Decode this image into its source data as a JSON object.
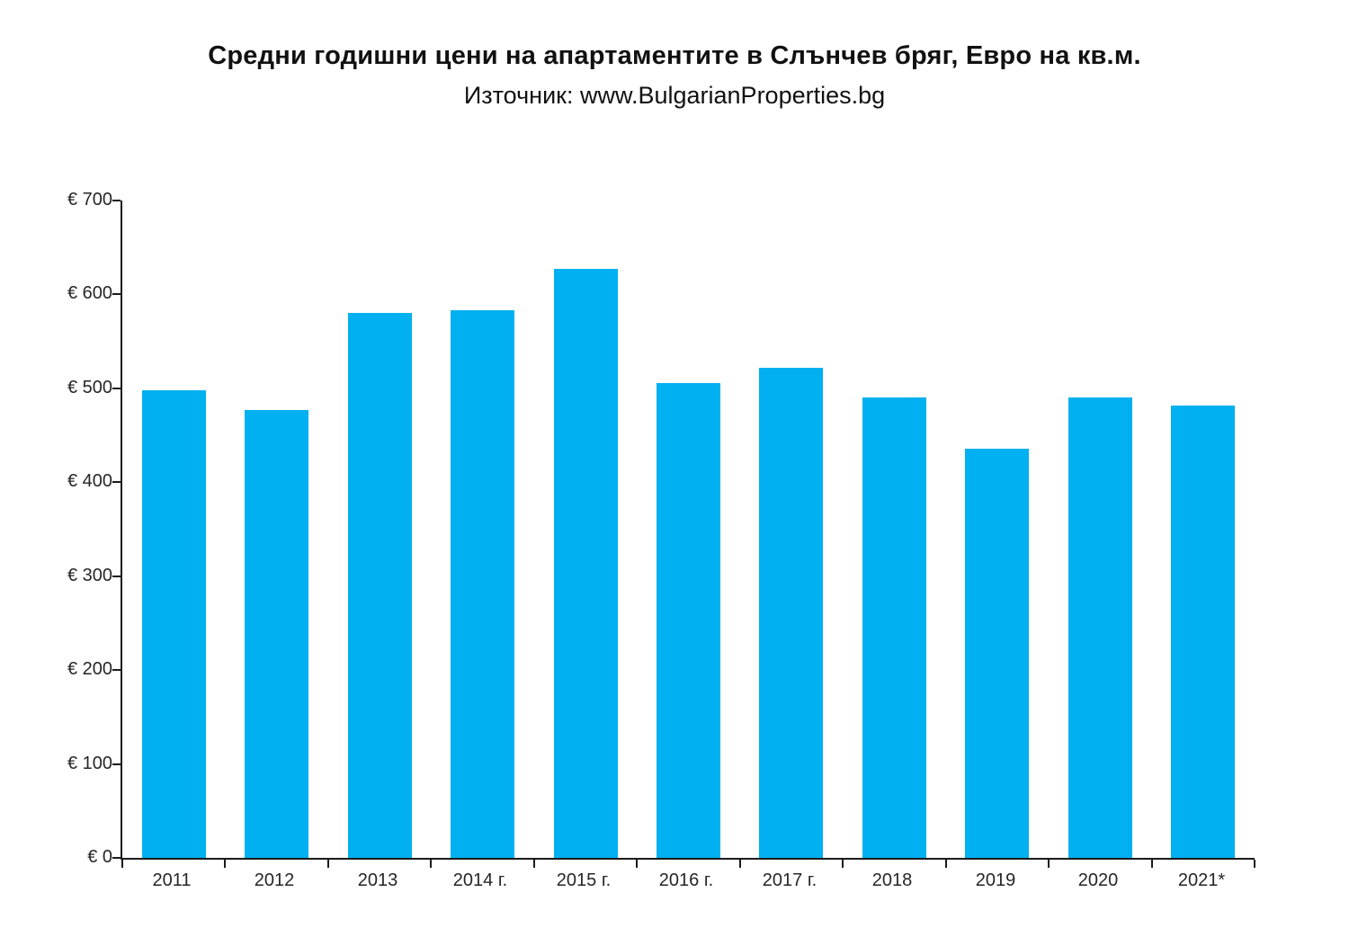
{
  "header": {
    "title": "Средни годишни цени на апартаментите в Слънчев бряг, Евро на кв.м.",
    "subtitle": "Източник: www.BulgarianProperties.bg"
  },
  "chart_data": {
    "type": "bar",
    "title": "Средни годишни цени на апартаментите в Слънчев бряг, Евро на кв.м.",
    "subtitle": "Източник: www.BulgarianProperties.bg",
    "categories": [
      "2011",
      "2012",
      "2013",
      "2014 г.",
      "2015 г.",
      "2016 г.",
      "2017 г.",
      "2018",
      "2019",
      "2020",
      "2021*"
    ],
    "values": [
      498,
      477,
      580,
      583,
      627,
      506,
      522,
      490,
      436,
      490,
      482
    ],
    "xlabel": "",
    "ylabel": "",
    "ylim": [
      0,
      700
    ],
    "ytick_step": 100,
    "ytick_labels": [
      "€ 0",
      "€ 100",
      "€ 200",
      "€ 300",
      "€ 400",
      "€ 500",
      "€ 600",
      "€ 700"
    ],
    "currency_prefix": "€",
    "grid": false,
    "legend": "none",
    "bar_color": "#00B0F0",
    "axis_color": "#1a1a1a",
    "text_color": "#262626",
    "background_color": "#ffffff"
  }
}
